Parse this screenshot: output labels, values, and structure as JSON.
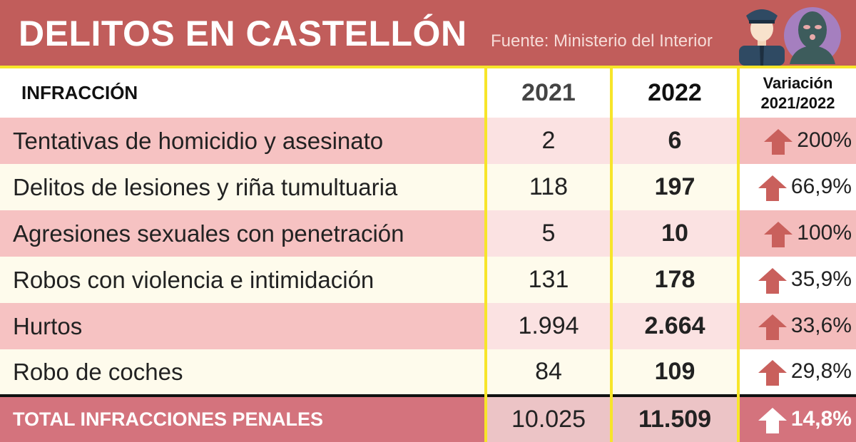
{
  "header": {
    "title": "DELITOS EN CASTELLÓN",
    "source": "Fuente: Ministerio del Interior",
    "icons": [
      "police-officer-icon",
      "masked-thief-icon"
    ]
  },
  "columns": {
    "label": "INFRACCIÓN",
    "y2021": "2021",
    "y2022": "2022",
    "variation_l1": "Variación",
    "variation_l2": "2021/2022"
  },
  "rows": [
    {
      "label": "Tentativas de homicidio y asesinato",
      "y2021": "2",
      "y2022": "6",
      "variation": "200%"
    },
    {
      "label": "Delitos de lesiones y riña tumultuaria",
      "y2021": "118",
      "y2022": "197",
      "variation": "66,9%"
    },
    {
      "label": "Agresiones sexuales con penetración",
      "y2021": "5",
      "y2022": "10",
      "variation": "100%"
    },
    {
      "label": "Robos con violencia e intimidación",
      "y2021": "131",
      "y2022": "178",
      "variation": "35,9%"
    },
    {
      "label": "Hurtos",
      "y2021": "1.994",
      "y2022": "2.664",
      "variation": "33,6%"
    },
    {
      "label": "Robo de coches",
      "y2021": "84",
      "y2022": "109",
      "variation": "29,8%"
    }
  ],
  "total": {
    "label": "TOTAL INFRACCIONES PENALES",
    "y2021": "10.025",
    "y2022": "11.509",
    "variation": "14,8%"
  },
  "colors": {
    "header": "#c15d5b",
    "arrow": "#c9605c",
    "grid": "#f7e52a"
  }
}
